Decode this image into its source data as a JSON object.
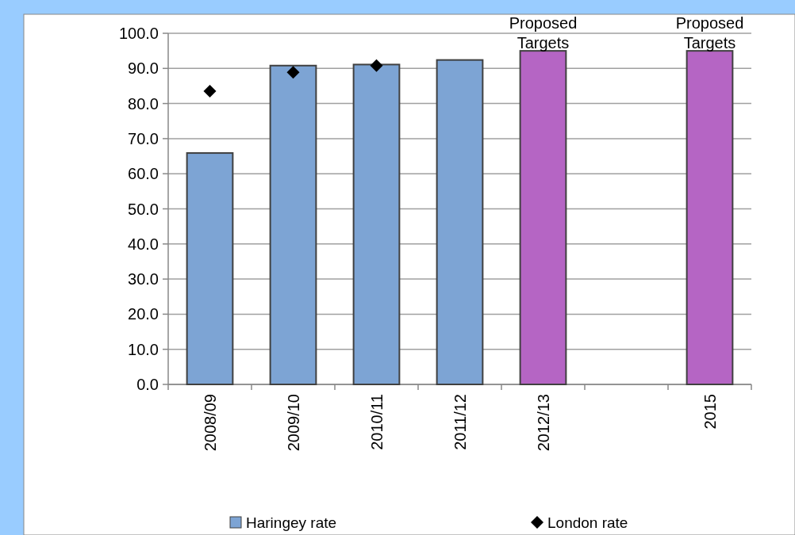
{
  "chart_data": {
    "type": "bar",
    "categories": [
      "2008/09",
      "2009/10",
      "2010/11",
      "2011/12",
      "2012/13",
      null,
      "2015"
    ],
    "series": [
      {
        "name": "Haringey rate",
        "color": "#7da4d4",
        "colors": [
          "#7da4d4",
          "#7da4d4",
          "#7da4d4",
          "#7da4d4",
          "#b565c4",
          null,
          "#b565c4"
        ],
        "values": [
          65.9,
          90.8,
          91.1,
          92.4,
          95.0,
          null,
          95.0
        ]
      },
      {
        "name": "London rate",
        "type": "scatter",
        "color": "#000000",
        "marker": "diamond",
        "values": [
          83.5,
          88.9,
          90.8,
          null,
          null,
          null,
          null
        ]
      }
    ],
    "ylim": [
      0,
      100
    ],
    "yticks": [
      {
        "value": 0,
        "label": "0.0"
      },
      {
        "value": 10,
        "label": "10.0"
      },
      {
        "value": 20,
        "label": "20.0"
      },
      {
        "value": 30,
        "label": "30.0"
      },
      {
        "value": 40,
        "label": "40.0"
      },
      {
        "value": 50,
        "label": "50.0"
      },
      {
        "value": 60,
        "label": "60.0"
      },
      {
        "value": 70,
        "label": "70.0"
      },
      {
        "value": 80,
        "label": "80.0"
      },
      {
        "value": 90,
        "label": "90.0"
      },
      {
        "value": 100,
        "label": "100.0"
      }
    ],
    "grid": "y",
    "legend": "bottom",
    "annotations": [
      {
        "text": "Proposed Targets",
        "x": "2012/13",
        "y": 95
      },
      {
        "text": "Proposed Targets",
        "x": "2015",
        "y": 95
      }
    ]
  }
}
